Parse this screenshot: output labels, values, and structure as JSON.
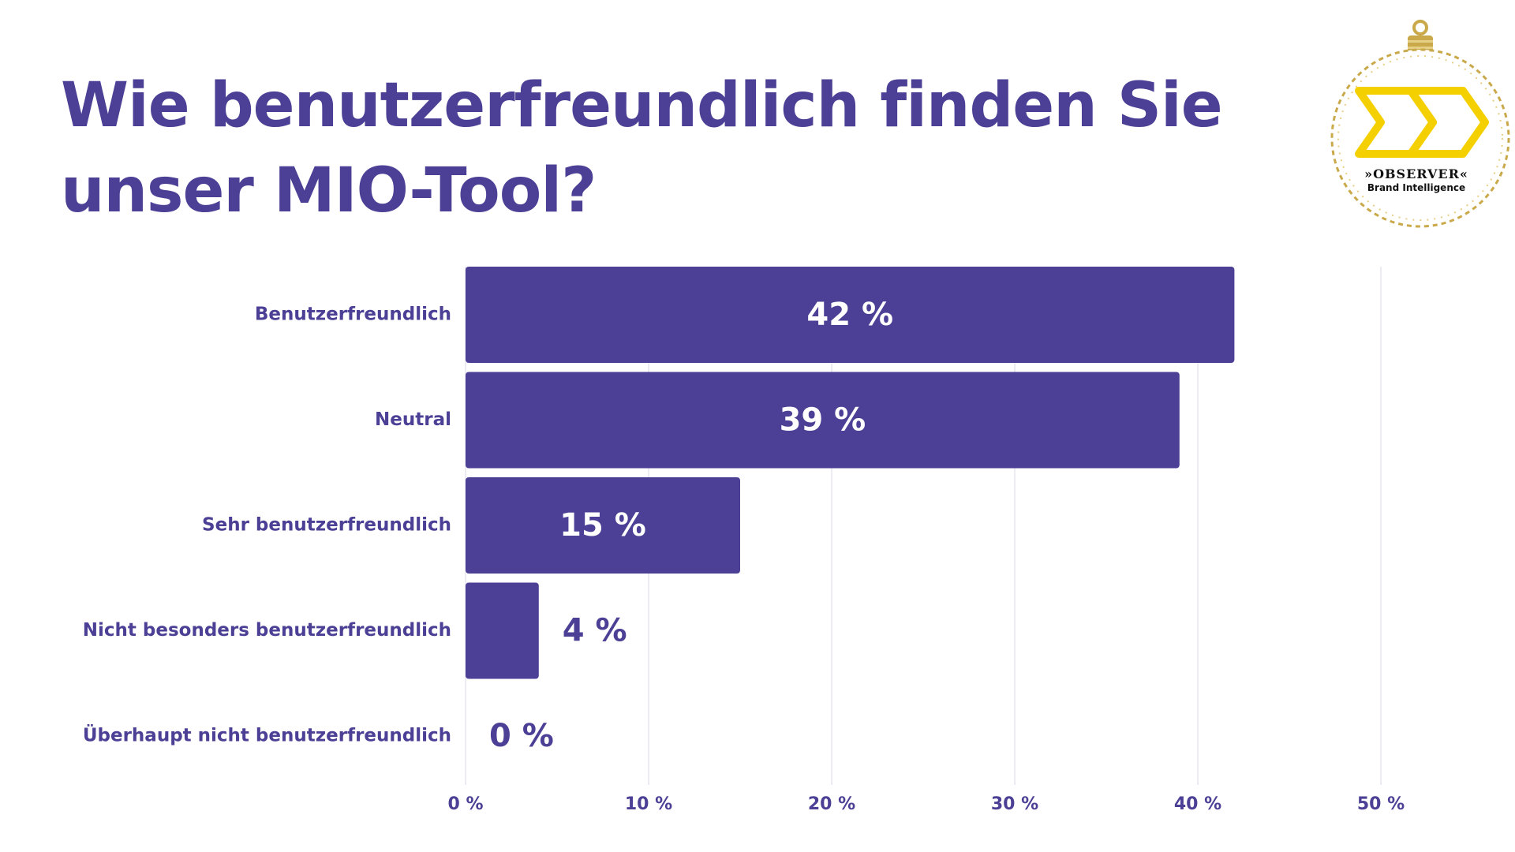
{
  "header": {
    "title": "Wie benutzerfreundlich finden Sie unser MIO-Tool?"
  },
  "logo": {
    "brand": "»OBSERVER«",
    "tagline": "Brand Intelligence",
    "icon": "chevrons-right-icon",
    "accent_color": "#f5d000",
    "frame_color": "#c9a94a"
  },
  "chart_data": {
    "type": "bar",
    "orientation": "horizontal",
    "categories": [
      "Benutzerfreundlich",
      "Neutral",
      "Sehr benutzerfreundlich",
      "Nicht besonders benutzerfreundlich",
      "Überhaupt nicht benutzerfreundlich"
    ],
    "values": [
      42,
      39,
      15,
      4,
      0
    ],
    "value_labels": [
      "42 %",
      "39 %",
      "15 %",
      "4 %",
      "0 %"
    ],
    "xlim": [
      0,
      50
    ],
    "xticks": [
      0,
      10,
      20,
      30,
      40,
      50
    ],
    "xtick_labels": [
      "0 %",
      "10 %",
      "20 %",
      "30 %",
      "40 %",
      "50 %"
    ],
    "title": "Wie benutzerfreundlich finden Sie unser MIO-Tool?",
    "xlabel": "",
    "ylabel": "",
    "grid": true,
    "legend": "none",
    "bar_color": "#4b4095",
    "grid_color": "#e6e4ee"
  }
}
